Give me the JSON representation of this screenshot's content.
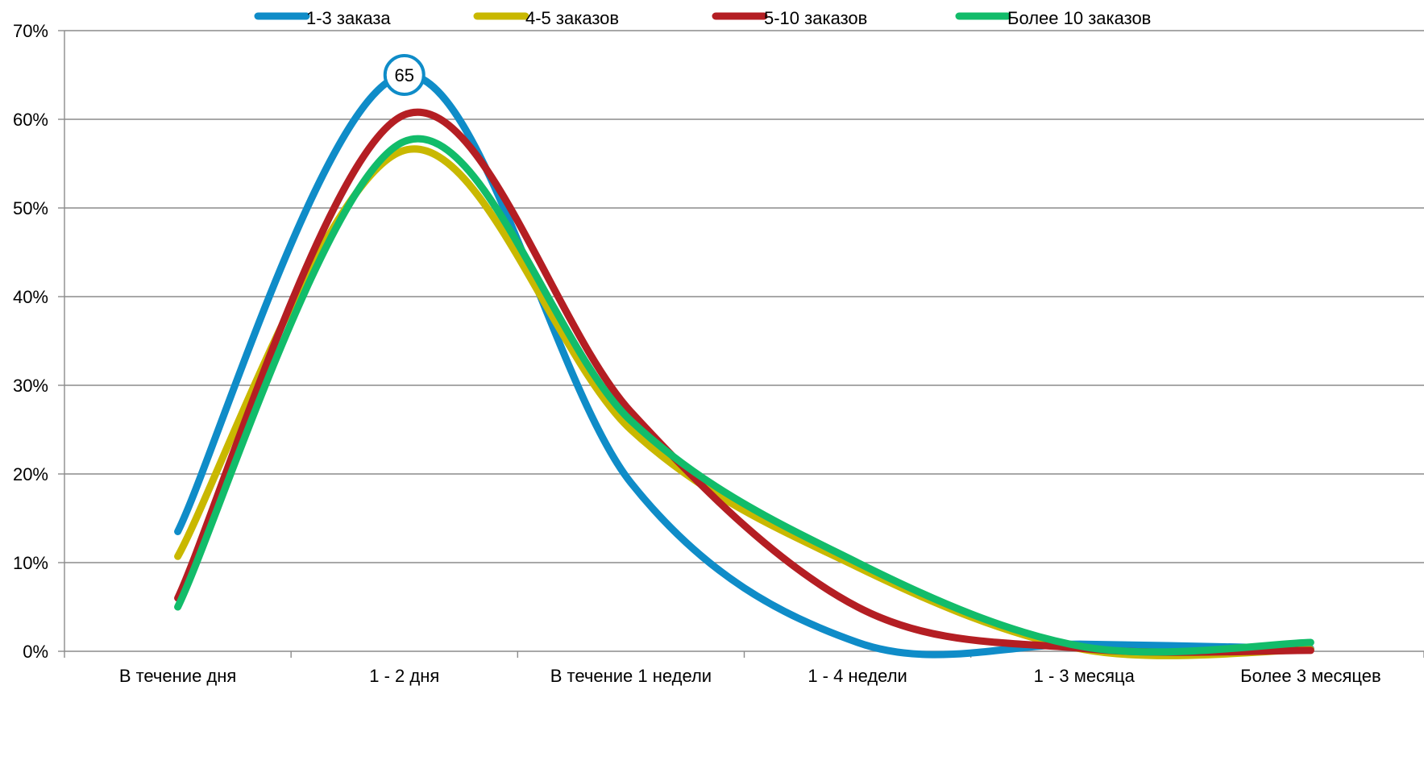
{
  "chart_data": {
    "type": "line",
    "categories": [
      "В течение дня",
      "1 - 2 дня",
      "В течение 1 недели",
      "1 - 4 недели",
      "1 - 3 месяца",
      "Более 3 месяцев"
    ],
    "y_ticks": [
      "0%",
      "10%",
      "20%",
      "30%",
      "40%",
      "50%",
      "60%",
      "70%"
    ],
    "ylim": [
      0,
      70
    ],
    "grid": true,
    "smooth": true,
    "legend_position": "top",
    "series": [
      {
        "name": "1-3 заказа",
        "color": "#0F8CC8",
        "values": [
          13.5,
          65,
          19,
          1,
          0.8,
          0.3
        ]
      },
      {
        "name": "4-5 заказов",
        "color": "#C9B800",
        "values": [
          10.7,
          56.5,
          25,
          9.5,
          0.2,
          0.2
        ]
      },
      {
        "name": "5-10 заказов",
        "color": "#B41E23",
        "values": [
          6,
          60.5,
          27,
          5,
          0.3,
          0.1
        ]
      },
      {
        "name": "Более 10 заказов",
        "color": "#12BC6A",
        "values": [
          5,
          57.5,
          26,
          10,
          0.5,
          1
        ]
      }
    ],
    "annotations": [
      {
        "series": 0,
        "category": "1 - 2 дня",
        "text": "65"
      }
    ]
  }
}
